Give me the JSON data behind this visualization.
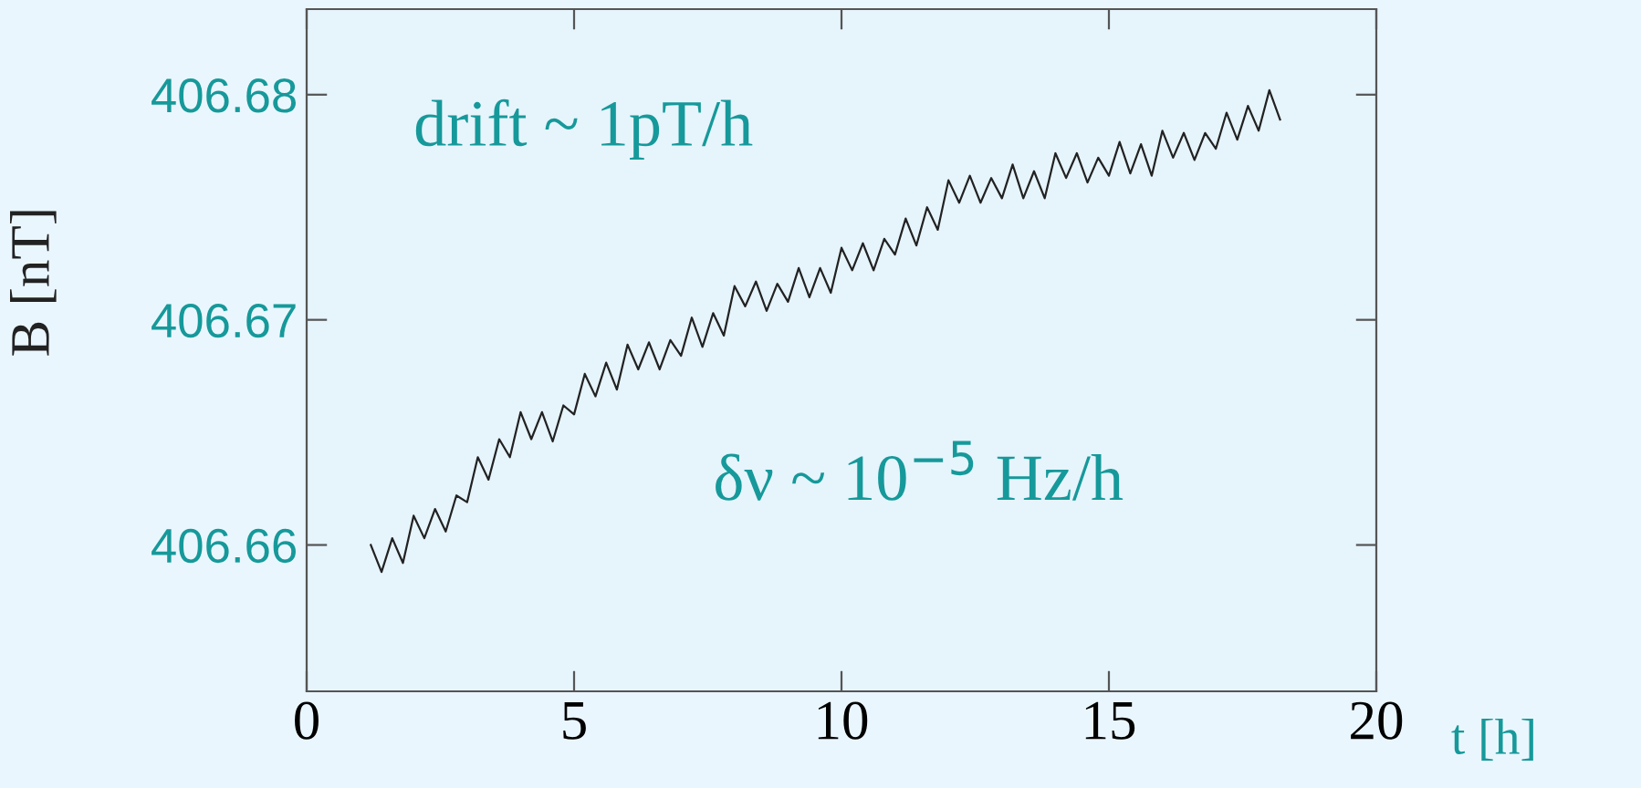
{
  "chart_data": {
    "type": "line",
    "xlabel": "t [h]",
    "ylabel": "B [nT]",
    "annotations": [
      "drift ~ 1pT/h",
      "δν ~ 10$^{−5}$ Hz/h"
    ],
    "xlim": [
      0,
      20
    ],
    "xticks": [
      0,
      5,
      10,
      15,
      20
    ],
    "ylim": [
      406.6535,
      406.6838
    ],
    "yticks": [
      406.66,
      406.67,
      406.68
    ],
    "grid": false,
    "marker": "none",
    "line_style": "solid",
    "series": [
      {
        "color": "#222222",
        "x": [
          1.2,
          1.4,
          1.6,
          1.8,
          2.0,
          2.2,
          2.4,
          2.6,
          2.8,
          3.0,
          3.2,
          3.4,
          3.6,
          3.8,
          4.0,
          4.2,
          4.4,
          4.6,
          4.8,
          5.0,
          5.2,
          5.4,
          5.6,
          5.8,
          6.0,
          6.2,
          6.4,
          6.6,
          6.8,
          7.0,
          7.2,
          7.4,
          7.6,
          7.8,
          8.0,
          8.2,
          8.4,
          8.6,
          8.8,
          9.0,
          9.2,
          9.4,
          9.6,
          9.8,
          10.0,
          10.2,
          10.4,
          10.6,
          10.8,
          11.0,
          11.2,
          11.4,
          11.6,
          11.8,
          12.0,
          12.2,
          12.4,
          12.6,
          12.8,
          13.0,
          13.2,
          13.4,
          13.6,
          13.8,
          14.0,
          14.2,
          14.4,
          14.6,
          14.8,
          15.0,
          15.2,
          15.4,
          15.6,
          15.8,
          16.0,
          16.2,
          16.4,
          16.6,
          16.8,
          17.0,
          17.2,
          17.4,
          17.6,
          17.8,
          18.0,
          18.2
        ],
        "values": [
          406.66,
          406.6588,
          406.6603,
          406.6592,
          406.6613,
          406.6603,
          406.6616,
          406.6606,
          406.6622,
          406.6619,
          406.6639,
          406.6629,
          406.6647,
          406.6639,
          406.6659,
          406.6647,
          406.6659,
          406.6646,
          406.6662,
          406.6658,
          406.6676,
          406.6666,
          406.6681,
          406.6669,
          406.6689,
          406.6678,
          406.669,
          406.6678,
          406.6691,
          406.6684,
          406.6701,
          406.6688,
          406.6703,
          406.6693,
          406.6715,
          406.6706,
          406.6717,
          406.6704,
          406.6716,
          406.6708,
          406.6723,
          406.671,
          406.6723,
          406.6712,
          406.6732,
          406.6722,
          406.6734,
          406.6722,
          406.6736,
          406.6729,
          406.6745,
          406.6733,
          406.675,
          406.674,
          406.6762,
          406.6752,
          406.6764,
          406.6752,
          406.6763,
          406.6754,
          406.6769,
          406.6754,
          406.6766,
          406.6754,
          406.6774,
          406.6763,
          406.6774,
          406.6761,
          406.6772,
          406.6764,
          406.6779,
          406.6765,
          406.6778,
          406.6764,
          406.6784,
          406.6772,
          406.6783,
          406.6771,
          406.6783,
          406.6776,
          406.6792,
          406.678,
          406.6795,
          406.6784,
          406.6802,
          406.6789
        ]
      }
    ]
  }
}
